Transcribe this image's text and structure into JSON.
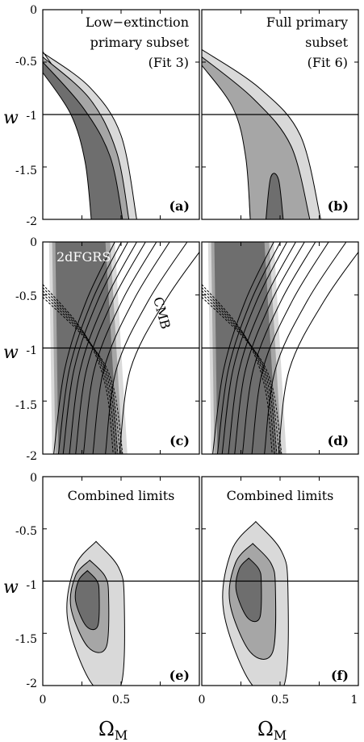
{
  "colors": {
    "shade_light": "#d9d9d9",
    "shade_mid": "#a6a6a6",
    "shade_dark": "#6e6e6e",
    "line": "#000000",
    "background": "#ffffff"
  },
  "axes": {
    "xlabel": "Ω",
    "xlabel_sub": "M",
    "ylabel": "w",
    "x_ticks": [
      "0",
      "0.5",
      "1"
    ],
    "x_ticks_left": [
      "0",
      "0.5"
    ],
    "y_ticks": [
      "0",
      "-0.5",
      "-1",
      "-1.5",
      "-2"
    ],
    "xlim": [
      0,
      1
    ],
    "ylim": [
      -2,
      0
    ]
  },
  "panels": [
    {
      "id": "a",
      "label": "(a)",
      "text_lines": [
        "Low−extinction",
        "primary subset",
        "(Fit 3)"
      ]
    },
    {
      "id": "b",
      "label": "(b)",
      "text_lines": [
        "Full primary",
        "subset",
        "(Fit 6)"
      ]
    },
    {
      "id": "c",
      "label": "(c)",
      "text_lines": [
        "2dFGRS",
        "CMB"
      ]
    },
    {
      "id": "d",
      "label": "(d)",
      "text_lines": []
    },
    {
      "id": "e",
      "label": "(e)",
      "text_lines": [
        "Combined limits"
      ]
    },
    {
      "id": "f",
      "label": "(f)",
      "text_lines": [
        "Combined limits"
      ]
    }
  ],
  "chart_data": {
    "type": "contour",
    "xlabel": "ΩM",
    "ylabel": "w",
    "xlim": [
      0,
      1
    ],
    "ylim": [
      -2,
      0
    ],
    "grid": false,
    "reference_line_w": -1,
    "sn_contours": {
      "a": [
        {
          "level": "outer",
          "left": [
            [
              0.0,
              -0.4
            ],
            [
              0.22,
              -0.9
            ],
            [
              0.33,
              -1.4
            ],
            [
              0.37,
              -2.0
            ]
          ],
          "right": [
            [
              0.0,
              -0.41
            ],
            [
              0.3,
              -0.74
            ],
            [
              0.5,
              -1.2
            ],
            [
              0.6,
              -2.0
            ]
          ]
        },
        {
          "level": "middle",
          "left": [
            [
              0.0,
              -0.52
            ],
            [
              0.2,
              -0.95
            ],
            [
              0.3,
              -1.43
            ],
            [
              0.34,
              -2.0
            ]
          ],
          "right": [
            [
              0.0,
              -0.45
            ],
            [
              0.3,
              -0.85
            ],
            [
              0.47,
              -1.35
            ],
            [
              0.55,
              -2.0
            ]
          ]
        },
        {
          "level": "inner",
          "left": [
            [
              0.0,
              -0.6
            ],
            [
              0.18,
              -1.0
            ],
            [
              0.27,
              -1.45
            ],
            [
              0.31,
              -2.0
            ]
          ],
          "right": [
            [
              0.0,
              -0.5
            ],
            [
              0.26,
              -0.94
            ],
            [
              0.43,
              -1.4
            ],
            [
              0.51,
              -2.0
            ]
          ]
        }
      ],
      "b": [
        {
          "level": "outer",
          "left": [
            [
              0.0,
              -0.47
            ],
            [
              0.2,
              -0.85
            ],
            [
              0.28,
              -1.3
            ],
            [
              0.31,
              -2.0
            ]
          ],
          "right": [
            [
              0.0,
              -0.38
            ],
            [
              0.37,
              -0.75
            ],
            [
              0.63,
              -1.2
            ],
            [
              0.76,
              -2.0
            ]
          ]
        },
        {
          "level": "middle",
          "left": [
            [
              0.0,
              -0.53
            ],
            [
              0.2,
              -0.94
            ],
            [
              0.28,
              -1.4
            ],
            [
              0.31,
              -2.0
            ]
          ],
          "right": [
            [
              0.0,
              -0.45
            ],
            [
              0.33,
              -0.85
            ],
            [
              0.57,
              -1.3
            ],
            [
              0.69,
              -2.0
            ]
          ]
        },
        {
          "level": "inner",
          "points": [
            [
              0.41,
              -2.0
            ],
            [
              0.44,
              -1.6
            ],
            [
              0.49,
              -1.62
            ],
            [
              0.52,
              -2.0
            ]
          ]
        }
      ]
    },
    "lss_band": {
      "name": "2dFGRS",
      "w_top": 0,
      "w_bottom": -2,
      "omega_at_top": [
        0.08,
        0.4
      ],
      "omega_at_bottom": [
        0.1,
        0.48
      ]
    },
    "cmb_band": {
      "name": "CMB",
      "omega_at_top": [
        0.12,
        0.88
      ],
      "omega_at_bottom": [
        0.1,
        0.32
      ]
    },
    "combined_contours": {
      "e": [
        {
          "level": "outer",
          "omega_range": [
            0.16,
            0.52
          ],
          "w_range": [
            -2.0,
            -0.62
          ]
        },
        {
          "level": "middle",
          "omega_range": [
            0.18,
            0.42
          ],
          "w_range": [
            -1.63,
            -0.8
          ]
        },
        {
          "level": "inner",
          "omega_range": [
            0.21,
            0.36
          ],
          "w_range": [
            -1.43,
            -0.9
          ]
        }
      ],
      "f": [
        {
          "level": "outer",
          "omega_range": [
            0.14,
            0.55
          ],
          "w_range": [
            -2.0,
            -0.43
          ]
        },
        {
          "level": "middle",
          "omega_range": [
            0.18,
            0.47
          ],
          "w_range": [
            -1.68,
            -0.64
          ]
        },
        {
          "level": "inner",
          "omega_range": [
            0.22,
            0.38
          ],
          "w_range": [
            -1.35,
            -0.78
          ]
        }
      ]
    }
  }
}
